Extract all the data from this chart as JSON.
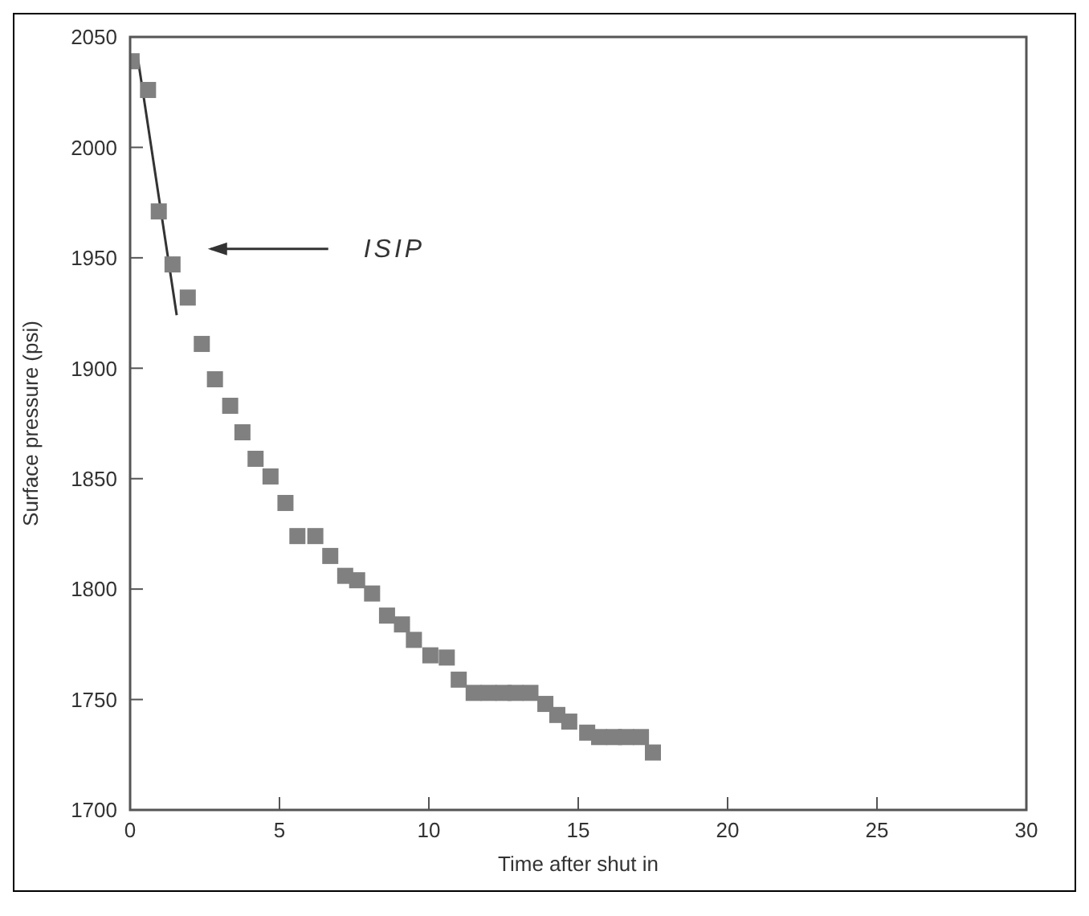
{
  "chart_data": {
    "type": "scatter",
    "xlabel": "Time after shut in",
    "ylabel": "Surface pressure (psi)",
    "xlim": [
      0,
      30
    ],
    "xticks": [
      0,
      5,
      10,
      15,
      20,
      25,
      30
    ],
    "ylim": [
      1700,
      2050
    ],
    "yticks": [
      1700,
      1750,
      1800,
      1850,
      1900,
      1950,
      2000,
      2050
    ],
    "grid": false,
    "legend": false,
    "marker": "square",
    "annotations": [
      "ISIP"
    ],
    "series": [
      {
        "color": "#808080",
        "x": [
          0.05,
          0.6,
          0.96,
          1.42,
          1.93,
          2.4,
          2.84,
          3.35,
          3.76,
          4.2,
          4.7,
          5.2,
          5.6,
          6.2,
          6.7,
          7.2,
          7.6,
          8.1,
          8.6,
          9.1,
          9.5,
          10.05,
          10.6,
          11,
          11.5,
          12,
          12.5,
          12.9,
          13.4,
          13.9,
          14.3,
          14.7,
          15.3,
          15.7,
          16.2,
          16.6,
          17.1,
          17.5
        ],
        "values": [
          2039,
          2026,
          1971,
          1947,
          1932,
          1911,
          1895,
          1883,
          1871,
          1859,
          1851,
          1839,
          1824,
          1824,
          1815,
          1806,
          1804,
          1798,
          1788,
          1784,
          1777,
          1770,
          1769,
          1759,
          1753,
          1753,
          1753,
          1753,
          1753,
          1748,
          1743,
          1740,
          1735,
          1733,
          1733,
          1733,
          1733,
          1726
        ]
      },
      {
        "type": "line",
        "color": "#333333",
        "marker": "none",
        "line_style": "solid",
        "x": [
          0.24,
          1.56
        ],
        "values": [
          2042,
          1924
        ]
      }
    ]
  }
}
